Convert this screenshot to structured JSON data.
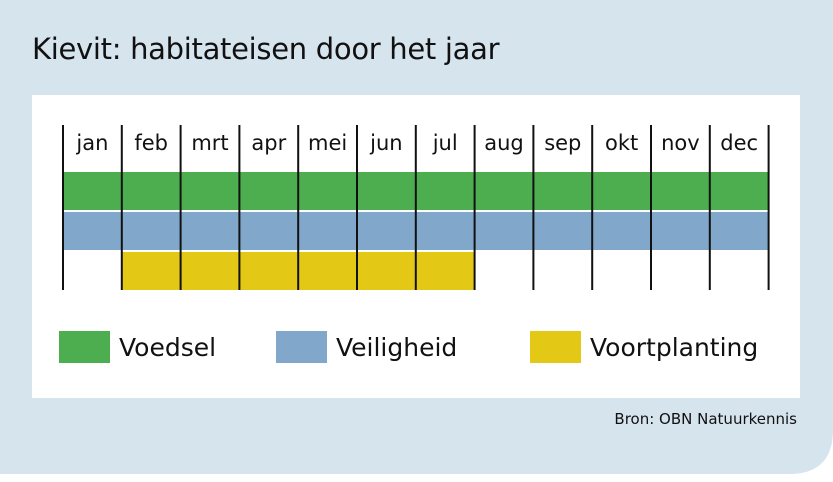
{
  "title": "Kievit: habitateisen door het jaar",
  "source": "Bron: OBN Natuurkennis",
  "colors": {
    "background": "#d6e4ee",
    "voedsel": "#4cae4f",
    "veiligheid": "#81a8cb",
    "voortplanting": "#e3c816"
  },
  "chart_data": {
    "type": "bar",
    "title": "Kievit: habitateisen door het jaar",
    "categories": [
      "jan",
      "feb",
      "mrt",
      "apr",
      "mei",
      "jun",
      "jul",
      "aug",
      "sep",
      "okt",
      "nov",
      "dec"
    ],
    "series": [
      {
        "name": "Voedsel",
        "color": "#4cae4f",
        "start_month": 1,
        "end_month": 12
      },
      {
        "name": "Veiligheid",
        "color": "#81a8cb",
        "start_month": 1,
        "end_month": 12
      },
      {
        "name": "Voortplanting",
        "color": "#e3c816",
        "start_month": 2,
        "end_month": 7
      }
    ],
    "legend": [
      "Voedsel",
      "Veiligheid",
      "Voortplanting"
    ],
    "legend_position": "bottom"
  }
}
